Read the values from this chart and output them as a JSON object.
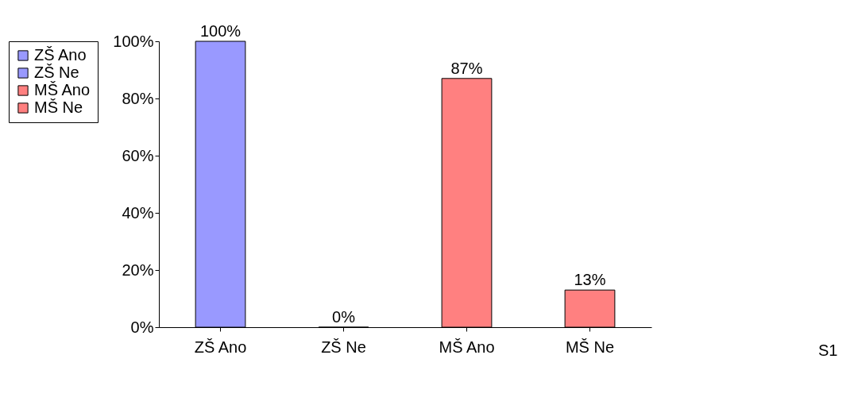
{
  "chart_data": {
    "type": "bar",
    "categories": [
      "ZŠ Ano",
      "ZŠ Ne",
      "MŠ Ano",
      "MŠ Ne"
    ],
    "series": [
      {
        "name": "ZŠ Ano",
        "color": "#9999ff",
        "values": [
          100,
          null,
          null,
          null
        ],
        "value_labels": [
          "100%",
          null,
          null,
          null
        ]
      },
      {
        "name": "ZŠ Ne",
        "color": "#9999ff",
        "values": [
          null,
          0,
          null,
          null
        ],
        "value_labels": [
          null,
          "0%",
          null,
          null
        ]
      },
      {
        "name": "MŠ Ano",
        "color": "#ff8080",
        "values": [
          null,
          null,
          87,
          null
        ],
        "value_labels": [
          null,
          null,
          "87%",
          null
        ]
      },
      {
        "name": "MŠ Ne",
        "color": "#ff8080",
        "values": [
          null,
          null,
          null,
          13
        ],
        "value_labels": [
          null,
          null,
          null,
          "13%"
        ]
      }
    ],
    "grid": false,
    "ylim": [
      0,
      100
    ],
    "yticks": [
      {
        "value": 0,
        "label": "0%"
      },
      {
        "value": 20,
        "label": "20%"
      },
      {
        "value": 40,
        "label": "40%"
      },
      {
        "value": 60,
        "label": "60%"
      },
      {
        "value": 80,
        "label": "80%"
      },
      {
        "value": 100,
        "label": "100%"
      }
    ],
    "legend": "left",
    "annotations": [
      "S1"
    ]
  }
}
